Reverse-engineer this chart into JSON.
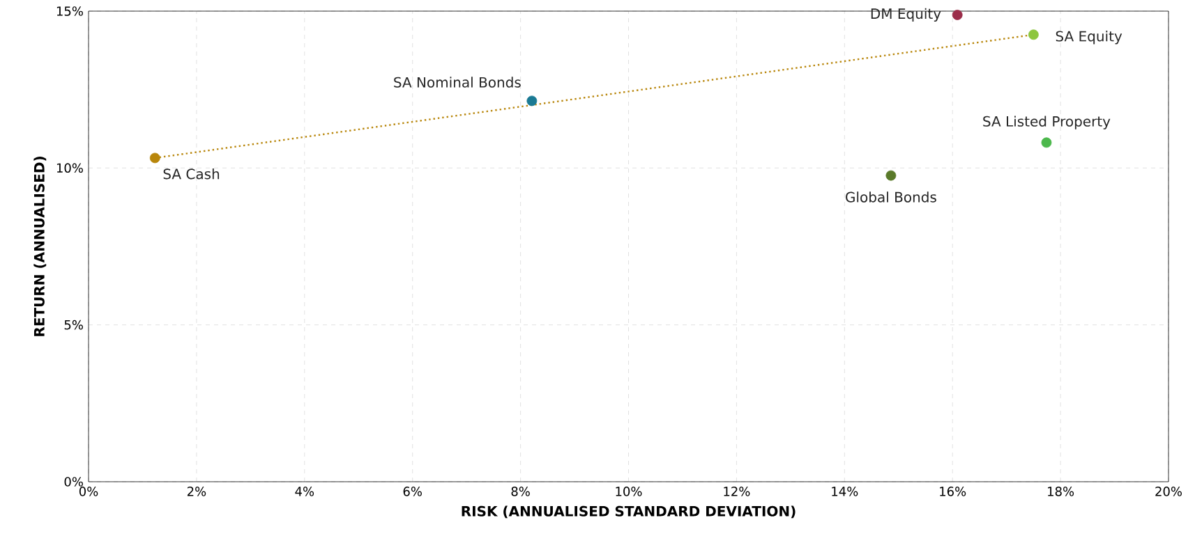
{
  "chart_data": {
    "type": "scatter",
    "xlabel": "RISK (ANNUALISED STANDARD DEVIATION)",
    "ylabel": "RETURN (ANNUALISED)",
    "series": [
      {
        "name": "SA Cash",
        "color": "#b8860b",
        "x": [
          1.23
        ],
        "values": [
          10.32
        ],
        "marker": "circle"
      },
      {
        "name": "SA Nominal Bonds",
        "color": "#1a7a94",
        "x": [
          8.21
        ],
        "values": [
          12.14
        ],
        "marker": "circle"
      },
      {
        "name": "DM Equity",
        "color": "#9b2d4a",
        "x": [
          16.09
        ],
        "values": [
          14.88
        ],
        "marker": "circle"
      },
      {
        "name": "SA Equity",
        "color": "#8dc63f",
        "x": [
          17.5
        ],
        "values": [
          14.25
        ],
        "marker": "circle"
      },
      {
        "name": "SA Listed Property",
        "color": "#4cb84c",
        "x": [
          17.74
        ],
        "values": [
          10.81
        ],
        "marker": "circle"
      },
      {
        "name": "Global Bonds",
        "color": "#5a7a2a",
        "x": [
          14.86
        ],
        "values": [
          9.76
        ],
        "marker": "circle"
      },
      {
        "type": "line",
        "color": "#b8860b",
        "x": [
          1.23,
          17.5
        ],
        "values": [
          10.32,
          14.25
        ],
        "line_style": "dotted",
        "marker": "none"
      }
    ],
    "xlim": [
      0,
      20
    ],
    "ylim": [
      0,
      15
    ],
    "xticks": [
      {
        "value": 0,
        "label": "0%"
      },
      {
        "value": 2,
        "label": "2%"
      },
      {
        "value": 4,
        "label": "4%"
      },
      {
        "value": 6,
        "label": "6%"
      },
      {
        "value": 8,
        "label": "8%"
      },
      {
        "value": 10,
        "label": "10%"
      },
      {
        "value": 12,
        "label": "12%"
      },
      {
        "value": 14,
        "label": "14%"
      },
      {
        "value": 16,
        "label": "16%"
      },
      {
        "value": 18,
        "label": "18%"
      },
      {
        "value": 20,
        "label": "20%"
      }
    ],
    "yticks": [
      {
        "value": 0,
        "label": "0%"
      },
      {
        "value": 5,
        "label": "5%"
      },
      {
        "value": 10,
        "label": "10%"
      },
      {
        "value": 15,
        "label": "15%"
      }
    ],
    "grid": true,
    "legend": false
  }
}
